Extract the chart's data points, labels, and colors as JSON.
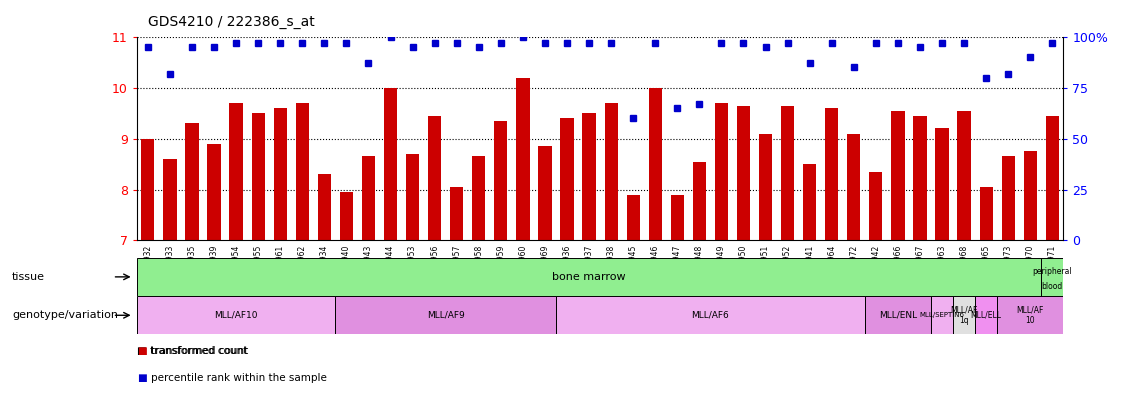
{
  "title": "GDS4210 / 222386_s_at",
  "samples": [
    "GSM487932",
    "GSM487933",
    "GSM487935",
    "GSM487939",
    "GSM487954",
    "GSM487955",
    "GSM487961",
    "GSM487962",
    "GSM487934",
    "GSM487940",
    "GSM487943",
    "GSM487944",
    "GSM487953",
    "GSM487956",
    "GSM487957",
    "GSM487958",
    "GSM487959",
    "GSM487960",
    "GSM487969",
    "GSM487936",
    "GSM487937",
    "GSM487938",
    "GSM487945",
    "GSM487946",
    "GSM487947",
    "GSM487948",
    "GSM487949",
    "GSM487950",
    "GSM487951",
    "GSM487952",
    "GSM487941",
    "GSM487964",
    "GSM487972",
    "GSM487942",
    "GSM487966",
    "GSM487967",
    "GSM487963",
    "GSM487968",
    "GSM487965",
    "GSM487973",
    "GSM487970",
    "GSM487971"
  ],
  "bar_values": [
    9.0,
    8.6,
    9.3,
    8.9,
    9.7,
    9.5,
    9.6,
    9.7,
    8.3,
    7.95,
    8.65,
    10.0,
    8.7,
    9.45,
    8.05,
    8.65,
    9.35,
    10.2,
    8.85,
    9.4,
    9.5,
    9.7,
    7.9,
    10.0,
    7.9,
    8.55,
    9.7,
    9.65,
    9.1,
    9.65,
    8.5,
    9.6,
    9.1,
    8.35,
    9.55,
    9.45,
    9.2,
    9.55,
    8.05,
    8.65,
    8.75,
    9.45
  ],
  "percentile_values": [
    95,
    82,
    95,
    95,
    97,
    97,
    97,
    97,
    97,
    97,
    87,
    100,
    95,
    97,
    97,
    95,
    97,
    100,
    97,
    97,
    97,
    97,
    60,
    97,
    65,
    67,
    97,
    97,
    95,
    97,
    87,
    97,
    85,
    97,
    97,
    95,
    97,
    97,
    80,
    82,
    90,
    97
  ],
  "ylim_left": [
    7,
    11
  ],
  "ylim_right": [
    0,
    100
  ],
  "yticks_left": [
    7,
    8,
    9,
    10,
    11
  ],
  "yticks_right": [
    0,
    25,
    50,
    75,
    100
  ],
  "bar_color": "#cc0000",
  "dot_color": "#0000cc",
  "genotype_groups": [
    {
      "label": "MLL/AF10",
      "start": 0,
      "end": 9,
      "color": "#f0b0f0"
    },
    {
      "label": "MLL/AF9",
      "start": 9,
      "end": 19,
      "color": "#e090e0"
    },
    {
      "label": "MLL/AF6",
      "start": 19,
      "end": 33,
      "color": "#f0b0f0"
    },
    {
      "label": "MLL/ENL",
      "start": 33,
      "end": 36,
      "color": "#e090e0"
    },
    {
      "label": "MLL/SEPTIN6",
      "start": 36,
      "end": 37,
      "color": "#f0b0f0"
    },
    {
      "label": "MLL/AF\n1q",
      "start": 37,
      "end": 38,
      "color": "#e0e0e0"
    },
    {
      "label": "MLL/ELL",
      "start": 38,
      "end": 39,
      "color": "#f090f0"
    },
    {
      "label": "MLL/AF\n10",
      "start": 39,
      "end": 42,
      "color": "#e090e0"
    }
  ]
}
